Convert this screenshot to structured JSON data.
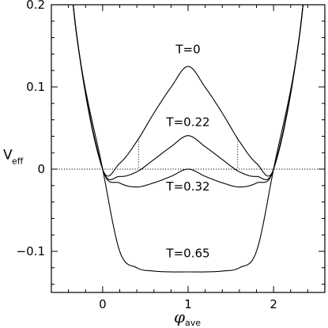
{
  "chart_data": {
    "type": "line",
    "title": "",
    "xlabel": "φ",
    "xlabel_sub": "ave",
    "ylabel": "V",
    "ylabel_sub": "eff",
    "xlim": [
      -0.6,
      2.6
    ],
    "ylim": [
      -0.15,
      0.2
    ],
    "xticks": [
      0,
      1,
      2
    ],
    "xtick_labels": [
      "0",
      "1",
      "2"
    ],
    "yticks": [
      -0.1,
      0,
      0.1,
      0.2
    ],
    "ytick_labels": [
      "−0.1",
      "0",
      "0.1",
      "0.2"
    ],
    "grid": false,
    "legend": "none",
    "series": [
      {
        "name": "T=0",
        "x": [
          -0.5,
          -0.3,
          0,
          0.2,
          0.4,
          0.6,
          0.8,
          1.0,
          1.2,
          1.4,
          1.6,
          1.8,
          2.0,
          2.3,
          2.5
        ],
        "y": [
          0.38,
          0.16,
          0,
          0.0071,
          0.0338,
          0.0682,
          0.0996,
          0.125,
          0.0996,
          0.0682,
          0.0338,
          0.0071,
          0,
          0.16,
          0.38
        ]
      },
      {
        "name": "T=0.22",
        "x": [
          -0.5,
          -0.3,
          0,
          0.2,
          0.4,
          0.6,
          0.8,
          1.0,
          1.2,
          1.4,
          1.6,
          1.8,
          2.0,
          2.3,
          2.5
        ],
        "y": [
          0.38,
          0.16,
          0,
          -0.0089,
          -0.0032,
          0.0117,
          0.0273,
          0.0407,
          0.0273,
          0.0117,
          -0.0032,
          -0.0089,
          0,
          0.16,
          0.38
        ]
      },
      {
        "name": "T=0.32",
        "x": [
          -0.5,
          -0.3,
          0,
          0.2,
          0.4,
          0.6,
          0.8,
          1.0,
          1.2,
          1.4,
          1.6,
          1.8,
          2.0,
          2.3,
          2.5
        ],
        "y": [
          0.38,
          0.16,
          0,
          -0.0169,
          -0.0217,
          -0.0166,
          -0.0088,
          0,
          -0.0088,
          -0.0166,
          -0.0217,
          -0.0169,
          0,
          0.16,
          0.38
        ]
      },
      {
        "name": "T=0.65",
        "x": [
          -0.5,
          -0.3,
          0,
          0.2,
          0.4,
          0.6,
          0.8,
          1.0,
          1.2,
          1.4,
          1.6,
          1.8,
          2.0,
          2.3,
          2.5
        ],
        "y": [
          0.38,
          0.16,
          0,
          -0.1,
          -0.12,
          -0.124,
          -0.125,
          -0.125,
          -0.125,
          -0.124,
          -0.12,
          -0.1,
          0,
          0.16,
          0.38
        ]
      }
    ],
    "curve_labels": [
      "T=0",
      "T=0.22",
      "T=0.32",
      "T=0.65"
    ],
    "marker_x": [
      0.42,
      1.58
    ]
  }
}
